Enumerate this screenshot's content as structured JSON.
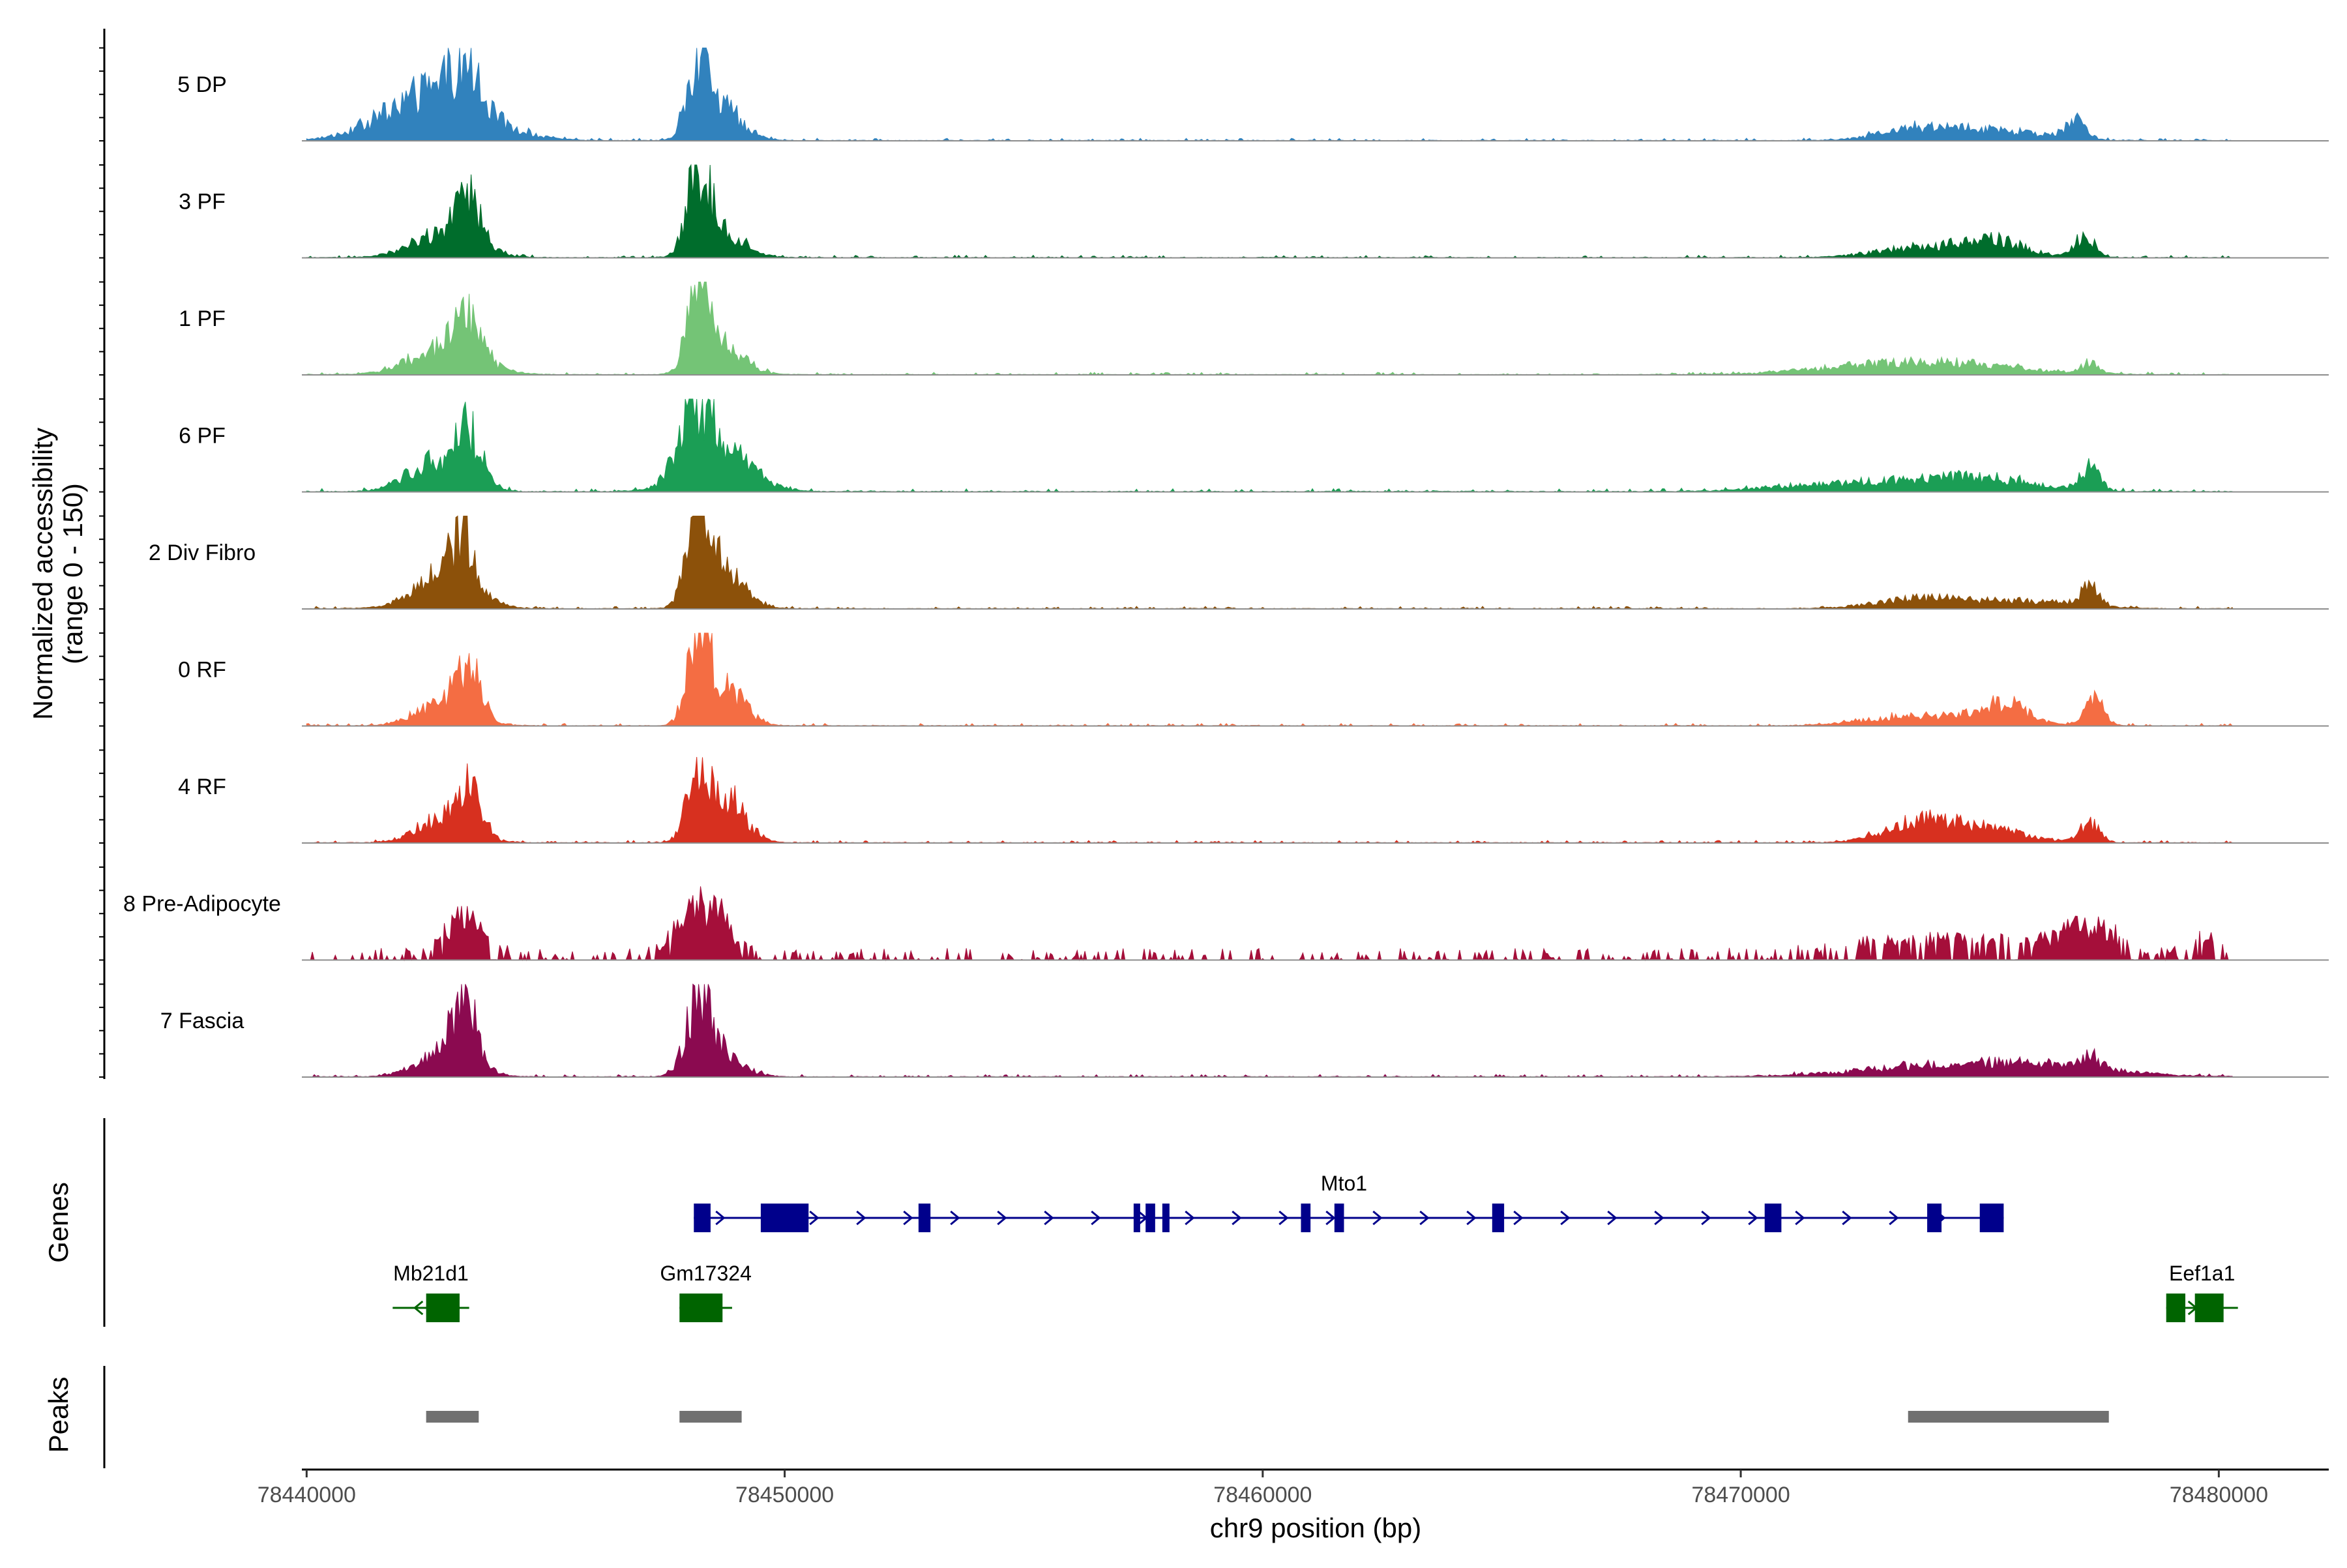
{
  "chart_data": {
    "type": "area",
    "title": "",
    "ylabel_line1": "Normalized accessibility",
    "ylabel_line2": "(range 0 - 150)",
    "ylim": [
      0,
      150
    ],
    "xlabel": "chr9 position (bp)",
    "xlim": [
      78439900,
      78482300
    ],
    "x_ticks": [
      78440000,
      78450000,
      78460000,
      78470000,
      78480000
    ],
    "x_tick_labels": [
      "78440000",
      "78450000",
      "78460000",
      "78470000",
      "78480000"
    ],
    "signal_start": 78440000,
    "signal_end": 78480300,
    "tracks": [
      {
        "name": "5 DP",
        "color": "#3182bd",
        "peaks": [
          [
            78442700,
            80,
            1000
          ],
          [
            78443300,
            55,
            300
          ],
          [
            78448200,
            138,
            230
          ],
          [
            78448800,
            45,
            380
          ],
          [
            78473800,
            20,
            800
          ],
          [
            78475500,
            14,
            900
          ],
          [
            78477000,
            32,
            200
          ]
        ],
        "noise": 3,
        "sparse": false
      },
      {
        "name": "3 PF",
        "color": "#006d2c",
        "peaks": [
          [
            78442900,
            40,
            650
          ],
          [
            78443400,
            65,
            250
          ],
          [
            78448200,
            130,
            230
          ],
          [
            78448700,
            40,
            450
          ],
          [
            78474000,
            18,
            1000
          ],
          [
            78475400,
            22,
            600
          ],
          [
            78477200,
            34,
            200
          ]
        ],
        "noise": 3,
        "sparse": false
      },
      {
        "name": "1 PF",
        "color": "#74c476",
        "peaks": [
          [
            78442900,
            45,
            700
          ],
          [
            78443400,
            68,
            250
          ],
          [
            78448200,
            122,
            230
          ],
          [
            78448700,
            42,
            450
          ],
          [
            78472500,
            10,
            1300
          ],
          [
            78474500,
            16,
            1400
          ],
          [
            78477300,
            16,
            200
          ]
        ],
        "noise": 3,
        "sparse": false
      },
      {
        "name": "6 PF",
        "color": "#1b9e55",
        "peaks": [
          [
            78442700,
            50,
            550
          ],
          [
            78443400,
            78,
            280
          ],
          [
            78448100,
            95,
            300
          ],
          [
            78448600,
            70,
            650
          ],
          [
            78472500,
            14,
            1500
          ],
          [
            78475000,
            20,
            1100
          ],
          [
            78477300,
            34,
            200
          ]
        ],
        "noise": 4,
        "sparse": false
      },
      {
        "name": "2 Div Fibro",
        "color": "#8c510a",
        "peaks": [
          [
            78442900,
            60,
            600
          ],
          [
            78443300,
            80,
            230
          ],
          [
            78448200,
            150,
            230
          ],
          [
            78448700,
            65,
            420
          ],
          [
            78473800,
            16,
            900
          ],
          [
            78476000,
            12,
            1000
          ],
          [
            78477300,
            30,
            200
          ]
        ],
        "noise": 3,
        "sparse": false
      },
      {
        "name": "0 RF",
        "color": "#f46d43",
        "peaks": [
          [
            78442900,
            40,
            550
          ],
          [
            78443400,
            78,
            230
          ],
          [
            78448200,
            136,
            230
          ],
          [
            78448800,
            58,
            380
          ],
          [
            78473700,
            16,
            1000
          ],
          [
            78475500,
            34,
            500
          ],
          [
            78477400,
            40,
            200
          ]
        ],
        "noise": 3,
        "sparse": false
      },
      {
        "name": "4 RF",
        "color": "#d7301f",
        "peaks": [
          [
            78442900,
            38,
            550
          ],
          [
            78443400,
            75,
            230
          ],
          [
            78448200,
            112,
            230
          ],
          [
            78448800,
            70,
            380
          ],
          [
            78473700,
            28,
            700
          ],
          [
            78475000,
            22,
            900
          ],
          [
            78477300,
            30,
            200
          ]
        ],
        "noise": 3,
        "sparse": false
      },
      {
        "name": "8 Pre-Adipocyte",
        "color": "#a50f3a",
        "peaks": [
          [
            78443300,
            55,
            400
          ],
          [
            78448200,
            75,
            400
          ],
          [
            78448700,
            22,
            400
          ],
          [
            78474000,
            22,
            1700
          ],
          [
            78477200,
            42,
            650
          ],
          [
            78479700,
            22,
            300
          ]
        ],
        "noise": 12,
        "sparse": true
      },
      {
        "name": "7 Fascia",
        "color": "#8b0a50",
        "peaks": [
          [
            78442900,
            40,
            550
          ],
          [
            78443300,
            105,
            240
          ],
          [
            78448200,
            112,
            260
          ],
          [
            78448700,
            35,
            420
          ],
          [
            78474000,
            16,
            1600
          ],
          [
            78476500,
            16,
            1400
          ],
          [
            78477300,
            20,
            200
          ]
        ],
        "noise": 3,
        "sparse": false
      }
    ],
    "genes_track_label": "Genes",
    "genes": [
      {
        "name": "Mto1",
        "color": "#00008b",
        "strand": "+",
        "start": 78448100,
        "end": 78475500,
        "exons": [
          [
            78448100,
            78448450
          ],
          [
            78449500,
            78450500
          ],
          [
            78452800,
            78453050
          ],
          [
            78457300,
            78457400
          ],
          [
            78457550,
            78457750
          ],
          [
            78457900,
            78458050
          ],
          [
            78460800,
            78461000
          ],
          [
            78461500,
            78461700
          ],
          [
            78464800,
            78465050
          ],
          [
            78470500,
            78470850
          ],
          [
            78473900,
            78474200
          ],
          [
            78475000,
            78475500
          ]
        ]
      },
      {
        "name": "Mb21d1",
        "color": "#006400",
        "strand": "-",
        "start": 78441800,
        "end": 78443400,
        "exons": [
          [
            78442500,
            78443200
          ]
        ]
      },
      {
        "name": "Gm17324",
        "color": "#006400",
        "strand": "-",
        "start": 78447800,
        "end": 78448900,
        "exons": [
          [
            78447800,
            78448700
          ]
        ]
      },
      {
        "name": "Eef1a1",
        "color": "#006400",
        "strand": "+",
        "start": 78478900,
        "end": 78480400,
        "exons": [
          [
            78478900,
            78479300
          ],
          [
            78479500,
            78480100
          ]
        ]
      }
    ],
    "peaks_track_label": "Peaks",
    "peak_regions": [
      [
        78442500,
        78443600
      ],
      [
        78447800,
        78449100
      ],
      [
        78473500,
        78477700
      ]
    ]
  }
}
